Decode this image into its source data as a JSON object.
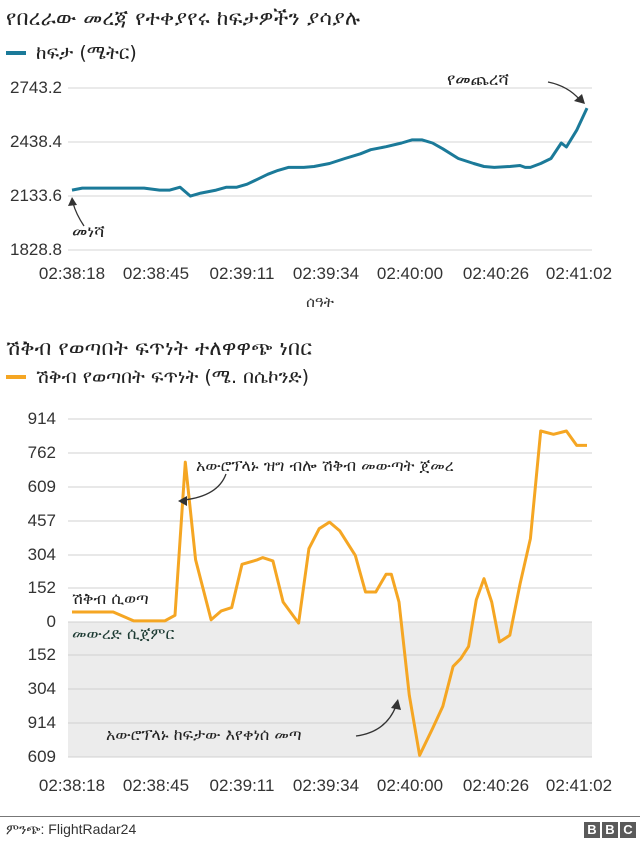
{
  "chart_data": [
    {
      "type": "line",
      "title": "የበረራው መረጃ የተቀያየሩ ከፍታዎችን ያሳያሉ",
      "legend": [
        {
          "name": "ከፍታ (ሜትር)",
          "color": "#1b7a99"
        }
      ],
      "xlabel": "ሰዓት",
      "ylabel": "",
      "x_tick_labels": [
        "02:38:18",
        "02:38:45",
        "02:39:11",
        "02:39:34",
        "02:40:00",
        "02:40:26",
        "02:41:02"
      ],
      "y_tick_labels": [
        "2743.2",
        "2438.4",
        "2133.6",
        "1828.8"
      ],
      "ylim": [
        1828.8,
        2743.2
      ],
      "grid": true,
      "series": [
        {
          "name": "ከፍታ (ሜትር)",
          "color": "#1b7a99",
          "x_fraction": [
            0.0,
            0.02,
            0.06,
            0.1,
            0.14,
            0.17,
            0.19,
            0.21,
            0.23,
            0.25,
            0.28,
            0.3,
            0.32,
            0.34,
            0.36,
            0.38,
            0.4,
            0.42,
            0.45,
            0.47,
            0.5,
            0.53,
            0.56,
            0.58,
            0.61,
            0.64,
            0.66,
            0.68,
            0.7,
            0.72,
            0.75,
            0.78,
            0.8,
            0.82,
            0.85,
            0.87,
            0.88,
            0.89,
            0.91,
            0.93,
            0.95,
            0.96,
            0.98,
            1.0
          ],
          "values": [
            2167,
            2178,
            2178,
            2178,
            2178,
            2167,
            2167,
            2183,
            2133,
            2150,
            2167,
            2183,
            2183,
            2200,
            2228,
            2256,
            2278,
            2295,
            2295,
            2300,
            2317,
            2345,
            2372,
            2395,
            2412,
            2433,
            2450,
            2450,
            2433,
            2400,
            2345,
            2317,
            2300,
            2295,
            2300,
            2306,
            2295,
            2295,
            2317,
            2345,
            2433,
            2410,
            2505,
            2630
          ]
        }
      ],
      "annotations": [
        {
          "text": "መነሻ",
          "target": "start"
        },
        {
          "text": "የመጨረሻ",
          "target": "end"
        }
      ]
    },
    {
      "type": "line",
      "title": "ሽቅብ የወጣበት ፍጥነት ተለዋዋጭ ነበር",
      "legend": [
        {
          "name": "ሽቅብ የወጣበት ፍጥነት (ሜ. በሴኮንድ)",
          "color": "#f5a623"
        }
      ],
      "xlabel": "",
      "ylabel": "",
      "x_tick_labels": [
        "02:38:18",
        "02:38:45",
        "02:39:11",
        "02:39:34",
        "02:40:00",
        "02:40:26",
        "02:41:02"
      ],
      "y_tick_labels": [
        "914",
        "762",
        "609",
        "457",
        "304",
        "152",
        "0",
        "152",
        "304",
        "914",
        "609"
      ],
      "ylim": [
        -762,
        914
      ],
      "grid": true,
      "shaded_negative_region": true,
      "series": [
        {
          "name": "ሽቅብ የወጣበት ፍጥነት (ሜ. በሴኮንድ)",
          "color": "#f5a623",
          "x_fraction": [
            0.0,
            0.04,
            0.08,
            0.12,
            0.145,
            0.18,
            0.2,
            0.22,
            0.24,
            0.27,
            0.29,
            0.31,
            0.33,
            0.36,
            0.37,
            0.39,
            0.41,
            0.44,
            0.46,
            0.48,
            0.5,
            0.52,
            0.55,
            0.57,
            0.59,
            0.61,
            0.62,
            0.635,
            0.655,
            0.675,
            0.7,
            0.72,
            0.74,
            0.755,
            0.77,
            0.785,
            0.8,
            0.815,
            0.83,
            0.85,
            0.87,
            0.89,
            0.91,
            0.935,
            0.96,
            0.98,
            1.0
          ],
          "values": [
            45,
            45,
            45,
            5,
            5,
            5,
            30,
            720,
            280,
            10,
            50,
            65,
            260,
            280,
            290,
            275,
            90,
            -5,
            330,
            420,
            450,
            410,
            300,
            135,
            135,
            215,
            215,
            90,
            -330,
            -600,
            -480,
            -380,
            -200,
            -165,
            -110,
            100,
            195,
            90,
            -90,
            -60,
            170,
            375,
            860,
            845,
            860,
            795,
            795
          ]
        }
      ],
      "annotations": [
        {
          "text": "አውሮፕላኑ ዝግ ብሎ ሽቅብ መውጣት ጀመረ",
          "target": "peak"
        },
        {
          "text": "ሽቅብ ሲወጣ",
          "target": "above-zero"
        },
        {
          "text": "መውረድ ሲጀምር",
          "target": "below-zero"
        },
        {
          "text": "አውሮፕላኑ ከፍታው እየቀነሰ መጣ",
          "target": "trough"
        }
      ]
    }
  ],
  "top_chart": {
    "title": "የበረራው መረጃ የተቀያየሩ ከፍታዎችን ያሳያሉ",
    "legend_label": "ከፍታ (ሜትር)",
    "y_ticks": [
      "2743.2",
      "2438.4",
      "2133.6",
      "1828.8"
    ],
    "x_ticks": [
      "02:38:18",
      "02:38:45",
      "02:39:11",
      "02:39:34",
      "02:40:00",
      "02:40:26",
      "02:41:02"
    ],
    "x_axis_label": "ሰዓት",
    "annotation_start": "መነሻ",
    "annotation_end": "የመጨረሻ",
    "line_color": "#1b7a99"
  },
  "bottom_chart": {
    "title": "ሽቅብ የወጣበት ፍጥነት ተለዋዋጭ ነበር",
    "legend_label": "ሽቅብ የወጣበት ፍጥነት (ሜ. በሴኮንድ)",
    "y_ticks": [
      "914",
      "762",
      "609",
      "457",
      "304",
      "152",
      "0",
      "152",
      "304",
      "914",
      "609"
    ],
    "x_ticks": [
      "02:38:18",
      "02:38:45",
      "02:39:11",
      "02:39:34",
      "02:40:00",
      "02:40:26",
      "02:41:02"
    ],
    "annotation_peak": "አውሮፕላኑ ዝግ ብሎ ሽቅብ መውጣት ጀመረ",
    "annotation_climbing": "ሽቅብ ሲወጣ",
    "annotation_descending": "መውረድ ሲጀምር",
    "annotation_trough": "አውሮፕላኑ ከፍታው እየቀነሰ መጣ",
    "line_color": "#f5a623",
    "negative_bg": "#ececec"
  },
  "footer": {
    "source": "ምንጭ: FlightRadar24",
    "logo_letters": [
      "B",
      "B",
      "C"
    ]
  }
}
